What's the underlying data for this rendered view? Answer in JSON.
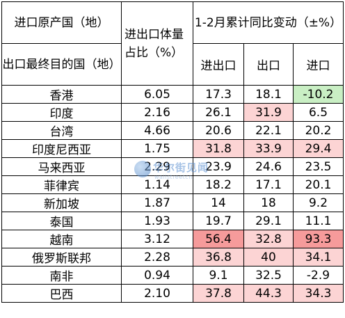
{
  "header": {
    "col1_top": "进口原产国（地）",
    "col1_bottom": "出口最终目的国（地）",
    "col2": "进出口体量占比（%）",
    "group": "1-2月累计同比变动（±%）",
    "sub_cols": [
      "进出口",
      "出口",
      "进口"
    ]
  },
  "colors": {
    "light_pink": "#fcd4d4",
    "mid_pink": "#fbc0c0",
    "strong_pink": "#f69b9b",
    "light_green": "#c9efc4"
  },
  "rows": [
    {
      "region": "香港",
      "share": "6.05",
      "total": "17.3",
      "export": "18.1",
      "import": "-10.2",
      "hl": [
        "",
        "",
        "green"
      ]
    },
    {
      "region": "印度",
      "share": "2.16",
      "total": "26.1",
      "export": "31.9",
      "import": "6.5",
      "hl": [
        "",
        "pink",
        ""
      ]
    },
    {
      "region": "台湾",
      "share": "4.66",
      "total": "20.6",
      "export": "22.1",
      "import": "20.2",
      "hl": [
        "",
        "",
        ""
      ]
    },
    {
      "region": "印度尼西亚",
      "share": "1.75",
      "total": "31.8",
      "export": "33.9",
      "import": "29.4",
      "hl": [
        "pink",
        "pink",
        "pink"
      ]
    },
    {
      "region": "马来西亚",
      "share": "2.29",
      "total": "23.9",
      "export": "24.6",
      "import": "23.5",
      "hl": [
        "",
        "",
        ""
      ]
    },
    {
      "region": "菲律宾",
      "share": "1.14",
      "total": "18.2",
      "export": "17.1",
      "import": "20.1",
      "hl": [
        "",
        "",
        ""
      ]
    },
    {
      "region": "新加坡",
      "share": "1.87",
      "total": "14",
      "export": "18",
      "import": "9.2",
      "hl": [
        "",
        "",
        ""
      ]
    },
    {
      "region": "泰国",
      "share": "1.93",
      "total": "19.7",
      "export": "29.1",
      "import": "11.1",
      "hl": [
        "",
        "",
        ""
      ]
    },
    {
      "region": "越南",
      "share": "3.12",
      "total": "56.4",
      "export": "32.8",
      "import": "93.3",
      "hl": [
        "strong",
        "pink",
        "strong"
      ]
    },
    {
      "region": "俄罗斯联邦",
      "share": "2.28",
      "total": "36.8",
      "export": "40",
      "import": "34.1",
      "hl": [
        "pink",
        "pink",
        "pink"
      ]
    },
    {
      "region": "南非",
      "share": "0.94",
      "total": "9.1",
      "export": "32.5",
      "import": "-2.9",
      "hl": [
        "",
        "",
        ""
      ]
    },
    {
      "region": "巴西",
      "share": "2.10",
      "total": "37.8",
      "export": "44.3",
      "import": "34.3",
      "hl": [
        "pink",
        "pink",
        "pink"
      ]
    }
  ],
  "watermark": {
    "text": "华尔街见闻",
    "sub": "wallstreetcn",
    "logo_icon": "wallstreetcn-logo-icon"
  }
}
